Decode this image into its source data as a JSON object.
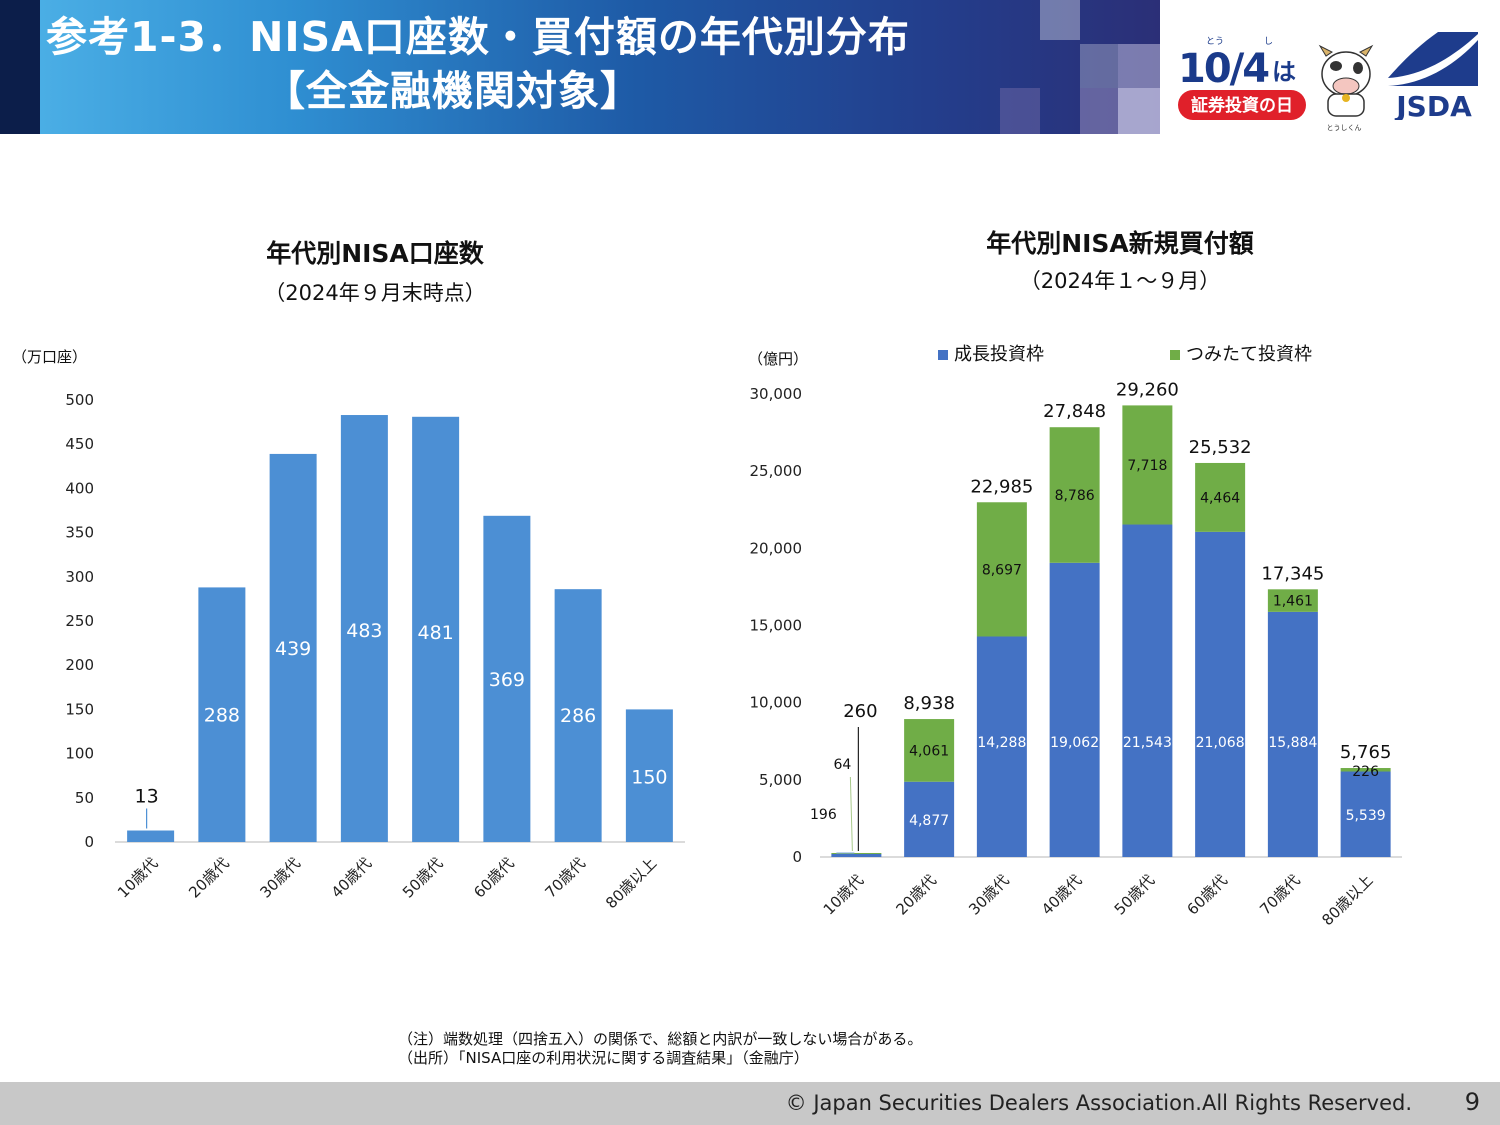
{
  "header": {
    "title_line1": "参考1-3．NISA口座数・買付額の年代別分布",
    "title_line2": "【全金融機関対象】"
  },
  "event_logo": {
    "date": "10/4",
    "wa": "は",
    "ruby_to": "とう",
    "ruby_shi": "し",
    "banner": "証券投資の日",
    "mascot_name": "とうしくん"
  },
  "jsda_logo": {
    "text": "JSDA"
  },
  "colors": {
    "accounts_bar": "#4c8fd4",
    "growth": "#4472c4",
    "tsumitate": "#70ad47",
    "header_dark": "#0c1e4a"
  },
  "left_chart": {
    "title": "年代別NISA口座数",
    "subtitle": "（2024年９月末時点）",
    "unit": "（万口座）"
  },
  "right_chart": {
    "title": "年代別NISA新規買付額",
    "subtitle": "（2024年１～９月）",
    "unit": "（億円）",
    "legend": {
      "growth": "成長投資枠",
      "tsumitate": "つみたて投資枠"
    }
  },
  "chart_data": [
    {
      "type": "bar",
      "title": "年代別NISA口座数",
      "subtitle": "（2024年９月末時点）",
      "ylabel": "（万口座）",
      "categories": [
        "10歳代",
        "20歳代",
        "30歳代",
        "40歳代",
        "50歳代",
        "60歳代",
        "70歳代",
        "80歳以上"
      ],
      "values": [
        13,
        288,
        439,
        483,
        481,
        369,
        286,
        150
      ],
      "data_labels": [
        "13",
        "288",
        "439",
        "483",
        "481",
        "369",
        "286",
        "150"
      ],
      "ylim": [
        0,
        500
      ],
      "yticks": [
        0,
        50,
        100,
        150,
        200,
        250,
        300,
        350,
        400,
        450,
        500
      ],
      "ytick_labels": [
        "0",
        "50",
        "100",
        "150",
        "200",
        "250",
        "300",
        "350",
        "400",
        "450",
        "500"
      ],
      "grid": false
    },
    {
      "type": "bar",
      "stacked": true,
      "title": "年代別NISA新規買付額",
      "subtitle": "（2024年１～９月）",
      "ylabel": "（億円）",
      "categories": [
        "10歳代",
        "20歳代",
        "30歳代",
        "40歳代",
        "50歳代",
        "60歳代",
        "70歳代",
        "80歳以上"
      ],
      "series": [
        {
          "name": "成長投資枠",
          "values": [
            196,
            4877,
            14288,
            19062,
            21543,
            21068,
            15884,
            5539
          ],
          "labels": [
            "196",
            "4,877",
            "14,288",
            "19,062",
            "21,543",
            "21,068",
            "15,884",
            "5,539"
          ]
        },
        {
          "name": "つみたて投資枠",
          "values": [
            64,
            4061,
            8697,
            8786,
            7718,
            4464,
            1461,
            226
          ],
          "labels": [
            "64",
            "4,061",
            "8,697",
            "8,786",
            "7,718",
            "4,464",
            "1,461",
            "226"
          ]
        }
      ],
      "totals": [
        260,
        8938,
        22985,
        27848,
        29260,
        25532,
        17345,
        5765
      ],
      "total_labels": [
        "260",
        "8,938",
        "22,985",
        "27,848",
        "29,260",
        "25,532",
        "17,345",
        "5,765"
      ],
      "ylim": [
        0,
        30000
      ],
      "yticks": [
        0,
        5000,
        10000,
        15000,
        20000,
        25000,
        30000
      ],
      "ytick_labels": [
        "0",
        "5,000",
        "10,000",
        "15,000",
        "20,000",
        "25,000",
        "30,000"
      ],
      "legend_position": "top",
      "grid": false
    }
  ],
  "notes": {
    "line1": "（注）端数処理（四捨五入）の関係で、総額と内訳が一致しない場合がある。",
    "line2": "（出所）「NISA口座の利用状況に関する調査結果」（金融庁）"
  },
  "footer": {
    "copyright": "© Japan Securities Dealers Association.All Rights Reserved.",
    "page": "9"
  }
}
